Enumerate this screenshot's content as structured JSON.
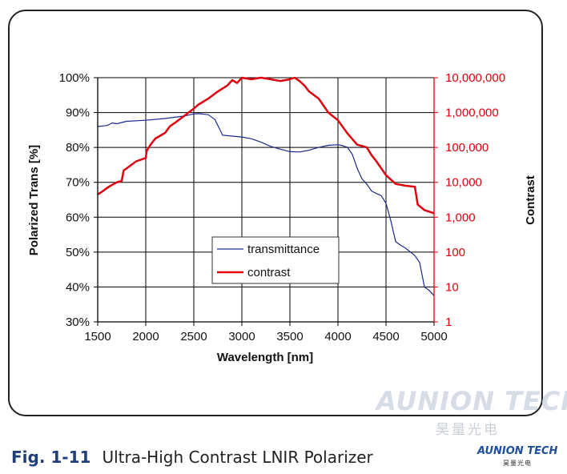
{
  "caption": {
    "number": "Fig. 1-11",
    "text": "Ultra-High Contrast LNIR Polarizer"
  },
  "watermark": {
    "name": "AUNION TECH",
    "sub": "昊量光电"
  },
  "logo": {
    "name": "AUNION TECH",
    "sub": "昊量光电"
  },
  "colors": {
    "transmittance": "#1a2a8c",
    "contrast": "#e0000d",
    "right_axis": "#e0000d"
  },
  "chart_data": {
    "type": "line",
    "xlabel": "Wavelength [nm]",
    "ylabel": "Polarized Trans [%]",
    "y2label": "Contrast",
    "xlim": [
      1500,
      5000
    ],
    "ylim": [
      30,
      100
    ],
    "y2scale": "log",
    "y2lim": [
      1,
      10000000
    ],
    "x_ticks": [
      "1500",
      "2000",
      "2500",
      "3000",
      "3500",
      "4000",
      "4500",
      "5000"
    ],
    "y_ticks": [
      "30%",
      "40%",
      "50%",
      "60%",
      "70%",
      "80%",
      "90%",
      "100%"
    ],
    "y2_ticks": [
      "1",
      "10",
      "100",
      "1,000",
      "10,000",
      "100,000",
      "1,000,000",
      "10,000,000"
    ],
    "grid": true,
    "legend_position": "center",
    "series": [
      {
        "name": "transmittance",
        "axis": "left",
        "x": [
          1500,
          1600,
          1650,
          1700,
          1800,
          2000,
          2200,
          2400,
          2500,
          2550,
          2650,
          2720,
          2800,
          3000,
          3100,
          3200,
          3300,
          3400,
          3500,
          3600,
          3700,
          3800,
          3900,
          4000,
          4050,
          4100,
          4150,
          4200,
          4250,
          4300,
          4350,
          4400,
          4450,
          4500,
          4550,
          4600,
          4650,
          4700,
          4800,
          4850,
          4900,
          4950,
          5000
        ],
        "values": [
          86,
          86.3,
          87,
          86.8,
          87.5,
          87.8,
          88.3,
          89,
          89.6,
          89.7,
          89.4,
          88,
          83.5,
          83,
          82.5,
          81.5,
          80.3,
          79.5,
          78.8,
          78.7,
          79.2,
          80,
          80.6,
          80.8,
          80.5,
          80,
          78,
          74,
          71,
          69.5,
          67.5,
          66.8,
          66.2,
          64,
          59,
          53,
          52,
          51.2,
          49,
          47,
          40,
          39,
          37.5
        ]
      },
      {
        "name": "contrast",
        "axis": "right",
        "x": [
          1500,
          1550,
          1600,
          1650,
          1700,
          1750,
          1770,
          1800,
          1900,
          2000,
          2010,
          2050,
          2100,
          2200,
          2250,
          2300,
          2400,
          2500,
          2550,
          2650,
          2750,
          2850,
          2900,
          2950,
          3000,
          3100,
          3200,
          3300,
          3400,
          3450,
          3500,
          3550,
          3600,
          3650,
          3700,
          3800,
          3900,
          4000,
          4100,
          4200,
          4300,
          4350,
          4400,
          4500,
          4600,
          4700,
          4800,
          4830,
          4900,
          5000
        ],
        "values": [
          4500,
          5500,
          7000,
          8500,
          10000,
          11000,
          22000,
          25000,
          40000,
          50000,
          80000,
          120000,
          180000,
          260000,
          400000,
          500000,
          800000,
          1300000,
          1700000,
          2500000,
          4000000,
          6000000,
          8500000,
          7000000,
          10000000,
          9000000,
          10000000,
          9000000,
          8000000,
          8500000,
          9000000,
          11000000,
          8000000,
          6000000,
          4000000,
          2500000,
          1000000,
          600000,
          250000,
          120000,
          100000,
          60000,
          40000,
          16000,
          9000,
          8000,
          7500,
          2300,
          1600,
          1300
        ]
      }
    ]
  }
}
